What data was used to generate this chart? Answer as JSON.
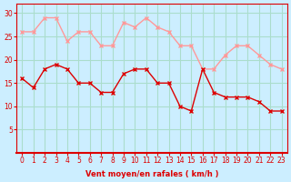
{
  "x": [
    0,
    1,
    2,
    3,
    4,
    5,
    6,
    7,
    8,
    9,
    10,
    11,
    12,
    13,
    14,
    15,
    16,
    17,
    18,
    19,
    20,
    21,
    22,
    23
  ],
  "wind_avg": [
    16,
    14,
    18,
    19,
    18,
    15,
    15,
    13,
    13,
    17,
    18,
    18,
    15,
    15,
    10,
    9,
    18,
    13,
    12,
    12,
    12,
    11,
    9,
    9
  ],
  "wind_gust": [
    26,
    26,
    29,
    29,
    24,
    26,
    26,
    23,
    23,
    28,
    27,
    29,
    27,
    26,
    23,
    23,
    18,
    18,
    21,
    23,
    23,
    21,
    19,
    18
  ],
  "avg_color": "#dd0000",
  "gust_color": "#ff9999",
  "bg_color": "#cceeff",
  "grid_color": "#aaddcc",
  "axis_color": "#dd0000",
  "xlabel": "Vent moyen/en rafales ( km/h )",
  "ylim": [
    0,
    32
  ],
  "yticks": [
    5,
    10,
    15,
    20,
    25,
    30
  ],
  "xticks": [
    0,
    1,
    2,
    3,
    4,
    5,
    6,
    7,
    8,
    9,
    10,
    11,
    12,
    13,
    14,
    15,
    16,
    17,
    18,
    19,
    20,
    21,
    22,
    23
  ]
}
